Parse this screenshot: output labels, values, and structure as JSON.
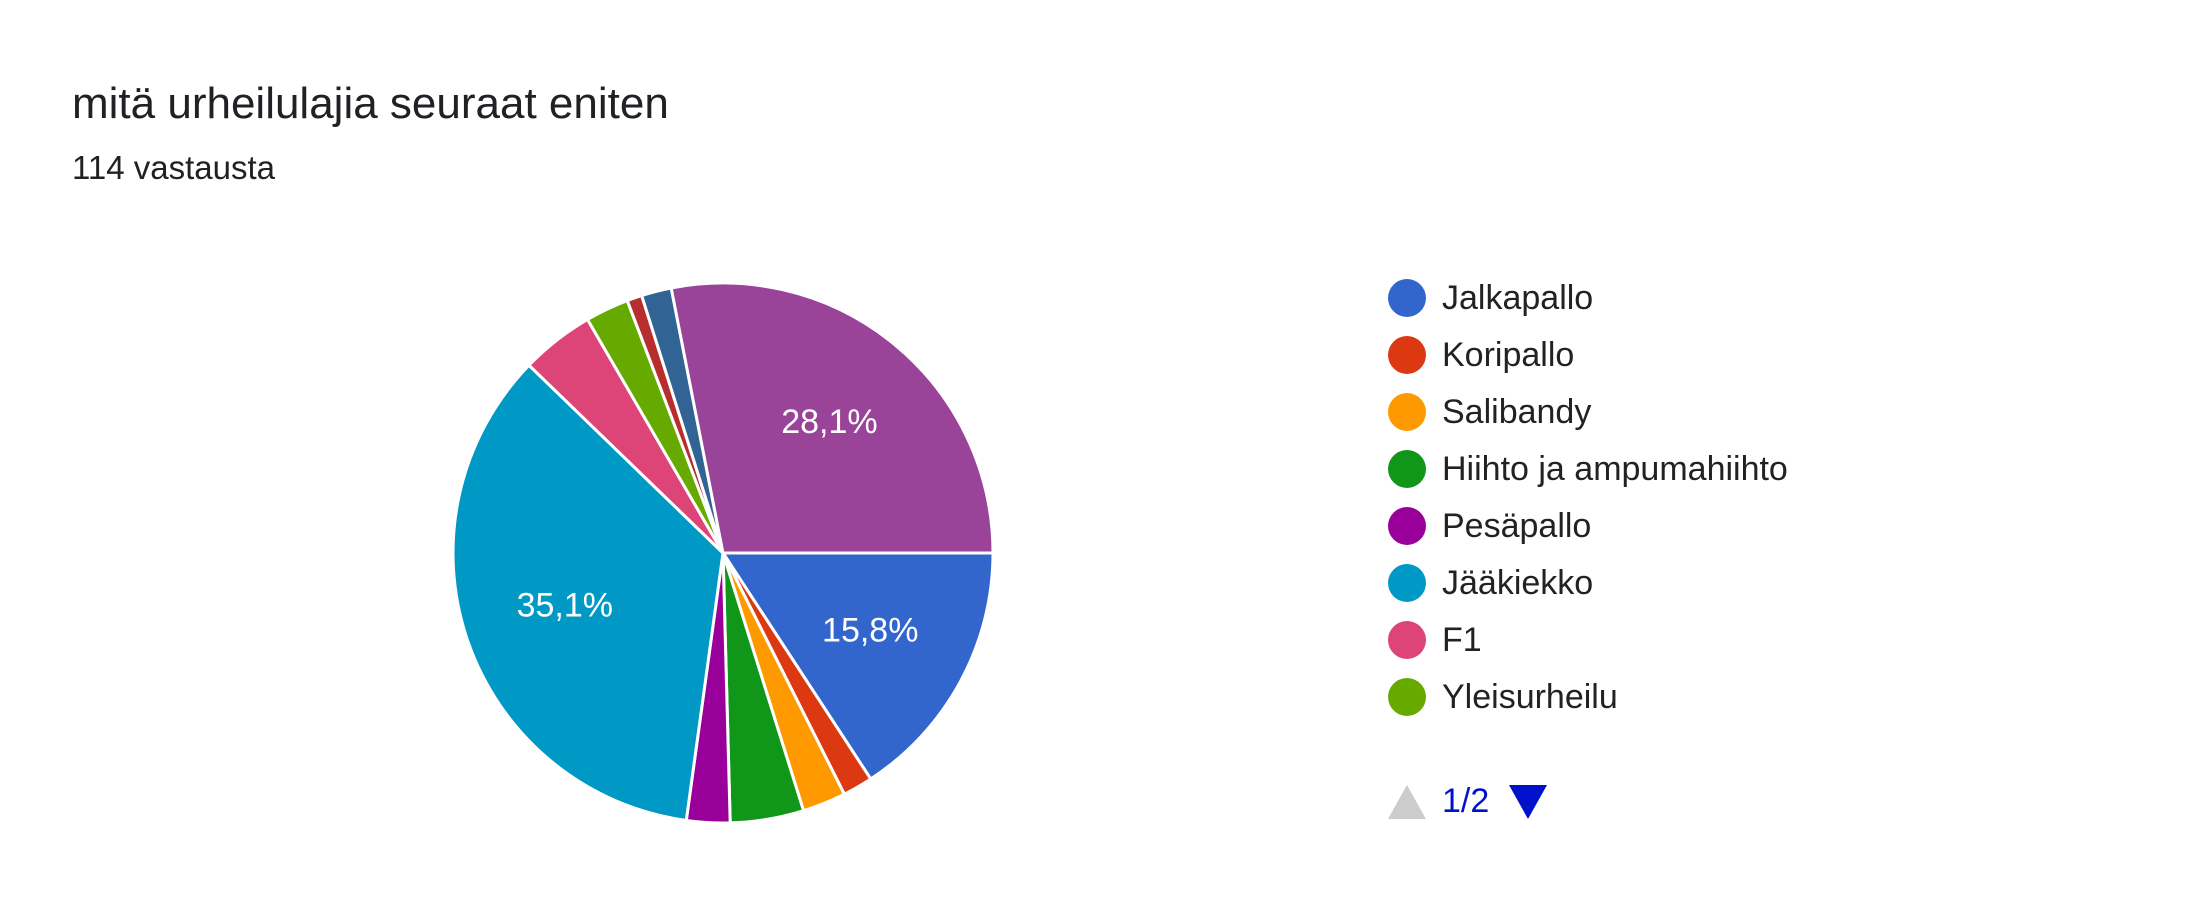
{
  "header": {
    "title": "mitä urheilulajia seuraat eniten",
    "responses": "114 vastausta"
  },
  "chart_data": {
    "type": "pie",
    "total_responses": 114,
    "slices": [
      {
        "label": "Jalkapallo",
        "percent": 15.8,
        "color": "#3366cc",
        "data_label": "15,8%"
      },
      {
        "label": "Koripallo",
        "percent": 1.8,
        "color": "#dc3912",
        "data_label": ""
      },
      {
        "label": "Salibandy",
        "percent": 2.6,
        "color": "#ff9900",
        "data_label": ""
      },
      {
        "label": "Hiihto ja ampumahiihto",
        "percent": 4.4,
        "color": "#109618",
        "data_label": ""
      },
      {
        "label": "Pesäpallo",
        "percent": 2.6,
        "color": "#990099",
        "data_label": ""
      },
      {
        "label": "Jääkiekko",
        "percent": 35.1,
        "color": "#0099c6",
        "data_label": "35,1%"
      },
      {
        "label": "F1",
        "percent": 4.4,
        "color": "#dd4477",
        "data_label": ""
      },
      {
        "label": "Yleisurheilu",
        "percent": 2.6,
        "color": "#66aa00",
        "data_label": ""
      },
      {
        "label": "",
        "percent": 0.9,
        "color": "#b82e2e",
        "data_label": ""
      },
      {
        "label": "",
        "percent": 1.8,
        "color": "#316395",
        "data_label": ""
      },
      {
        "label": "",
        "percent": 28.1,
        "color": "#994499",
        "data_label": "28,1%"
      }
    ],
    "legend_placement": "right"
  },
  "legend": {
    "visible_items": [
      "Jalkapallo",
      "Koripallo",
      "Salibandy",
      "Hiihto ja ampumahiihto",
      "Pesäpallo",
      "Jääkiekko",
      "F1",
      "Yleisurheilu"
    ]
  },
  "pager": {
    "text": "1/2",
    "prev_icon": "triangle-up-icon",
    "next_icon": "triangle-down-icon",
    "prev_color": "#cccccc",
    "next_color": "#0011cc"
  }
}
